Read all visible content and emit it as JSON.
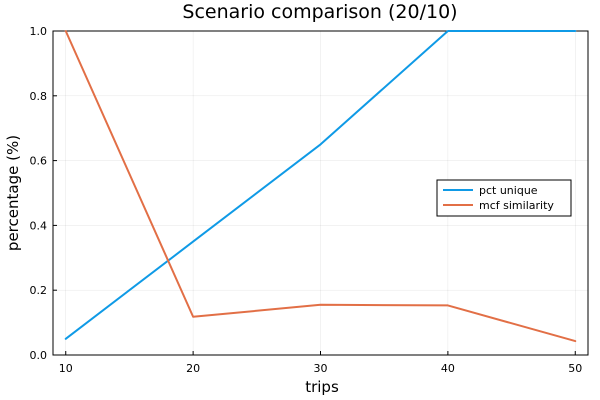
{
  "chart_data": {
    "type": "line",
    "title": "Scenario comparison (20/10)",
    "xlabel": "trips",
    "ylabel": "percentage (%)",
    "xlim": [
      9,
      51
    ],
    "ylim": [
      0,
      1
    ],
    "xticks": [
      10,
      20,
      30,
      40,
      50
    ],
    "yticks": [
      0.0,
      0.2,
      0.4,
      0.6,
      0.8,
      1.0
    ],
    "ytick_labels": [
      "0.0",
      "0.2",
      "0.4",
      "0.6",
      "0.8",
      "1.0"
    ],
    "grid": true,
    "legend_position": "right",
    "x": [
      10,
      20,
      30,
      40,
      50
    ],
    "series": [
      {
        "name": "pct unique",
        "color": "#0f9ae6",
        "values": [
          0.05,
          0.35,
          0.65,
          1.0,
          1.0
        ]
      },
      {
        "name": "mcf similarity",
        "color": "#e26f46",
        "values": [
          1.0,
          0.118,
          0.155,
          0.153,
          0.043
        ]
      }
    ]
  }
}
